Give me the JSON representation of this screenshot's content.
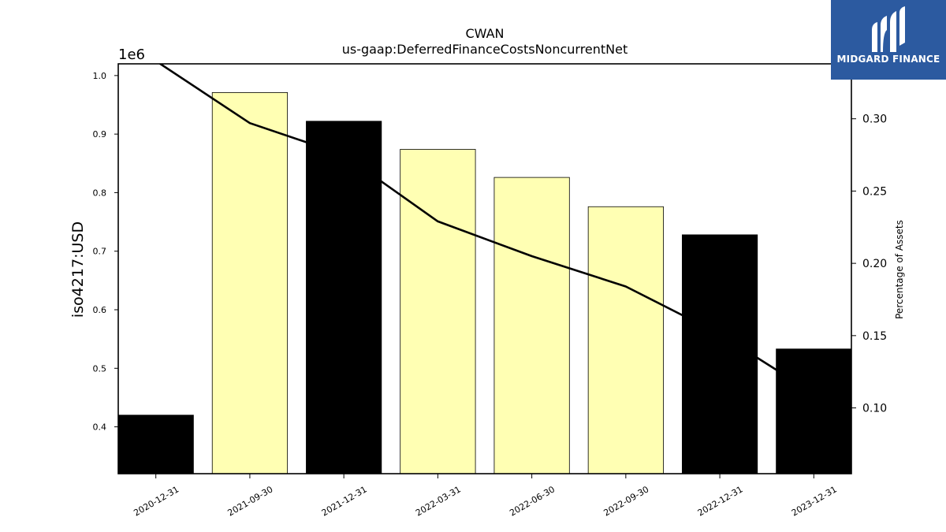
{
  "chart_data": {
    "type": "bar",
    "title": "CWAN",
    "subtitle": "us-gaap:DeferredFinanceCostsNoncurrentNet",
    "ylabel": "iso4217:USD",
    "y_offset_label": "1e6",
    "y2label": "Percentage of Assets",
    "categories": [
      "2020-12-31",
      "2021-09-30",
      "2021-12-31",
      "2022-03-31",
      "2022-06-30",
      "2022-09-30",
      "2022-12-31",
      "2023-12-31"
    ],
    "values": [
      420000,
      971000,
      922000,
      874000,
      826000,
      776000,
      728000,
      533000
    ],
    "bar_colors": [
      "#000000",
      "#ffffb3",
      "#000000",
      "#ffffb3",
      "#ffffb3",
      "#ffffb3",
      "#000000",
      "#000000"
    ],
    "ylim": [
      320000,
      1020000
    ],
    "yticks": [
      400000,
      500000,
      600000,
      700000,
      800000,
      900000,
      1000000
    ],
    "ytick_labels": [
      "0.4",
      "0.5",
      "0.6",
      "0.7",
      "0.8",
      "0.9",
      "1.0"
    ],
    "line": {
      "name": "Percentage of Assets",
      "axis": "right",
      "color": "#000000",
      "values": [
        0.34,
        0.297,
        0.275,
        0.229,
        0.205,
        0.184,
        0.151,
        0.11
      ]
    },
    "y2lim": [
      0.0545,
      0.338
    ],
    "y2ticks": [
      0.1,
      0.15,
      0.2,
      0.25,
      0.3
    ],
    "y2tick_labels": [
      "0.10",
      "0.15",
      "0.20",
      "0.25",
      "0.30"
    ],
    "grid": false,
    "legend": "none"
  },
  "logo": {
    "text": "MIDGARD FINANCE",
    "background": "#2c5aa0"
  }
}
